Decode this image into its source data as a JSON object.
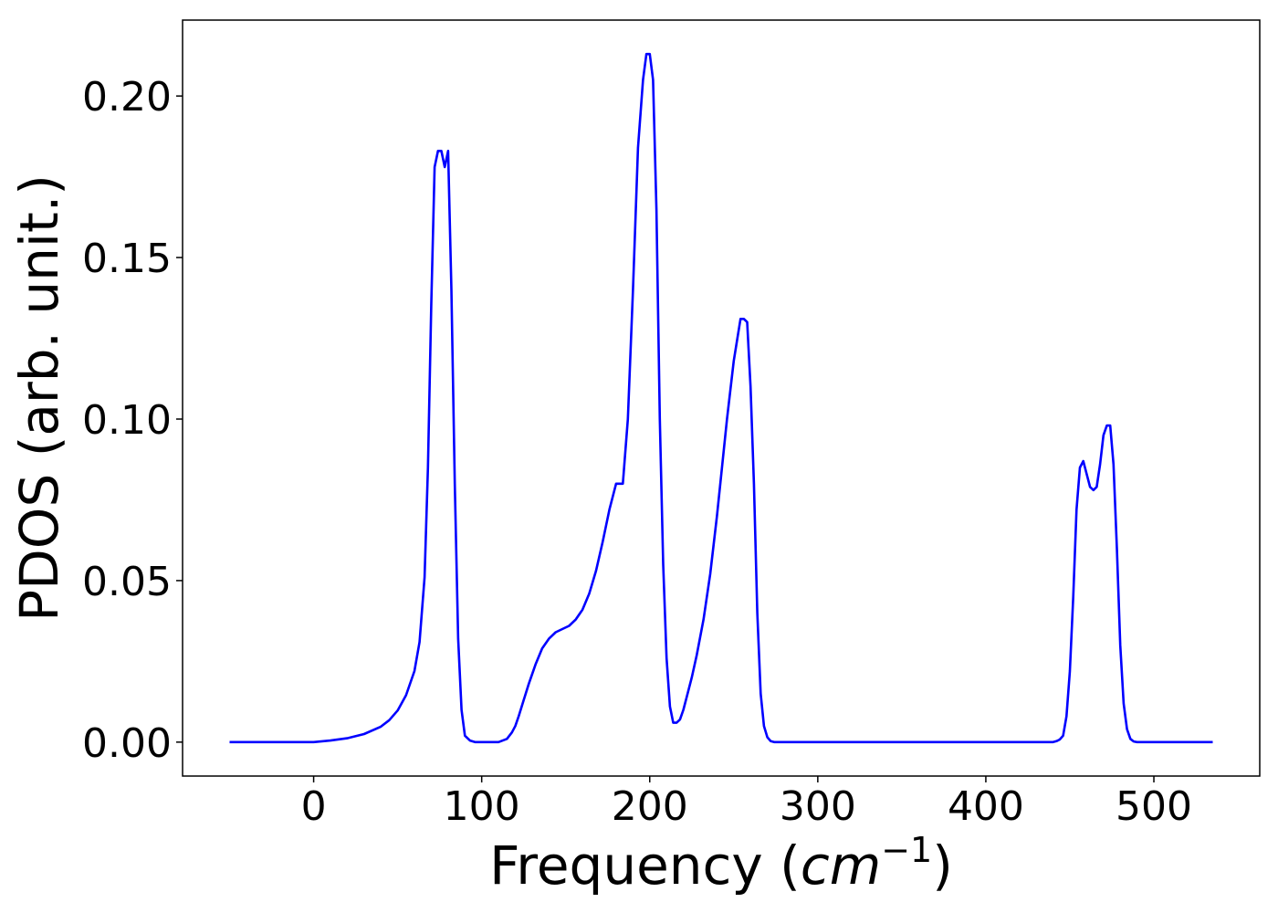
{
  "chart_data": {
    "type": "line",
    "title": "",
    "xlabel": "Frequency (",
    "xlabel_unit": "cm",
    "xlabel_exp": "−1",
    "xlabel_close": ")",
    "ylabel": "PDOS (arb. unit.)",
    "xlim": [
      -78,
      563
    ],
    "ylim": [
      -0.0105,
      0.2235
    ],
    "xticks": [
      0,
      100,
      200,
      300,
      400,
      500
    ],
    "xtick_labels": [
      "0",
      "100",
      "200",
      "300",
      "400",
      "500"
    ],
    "yticks": [
      0.0,
      0.05,
      0.1,
      0.15,
      0.2
    ],
    "ytick_labels": [
      "0.00",
      "0.05",
      "0.10",
      "0.15",
      "0.20"
    ],
    "grid": false,
    "series": [
      {
        "color": "#0000ff",
        "x": [
          -50,
          -40,
          -30,
          -20,
          -10,
          0,
          10,
          20,
          30,
          40,
          45,
          50,
          55,
          60,
          63,
          66,
          68,
          70,
          72,
          74,
          76,
          78,
          80,
          82,
          84,
          86,
          88,
          90,
          93,
          96,
          100,
          105,
          110,
          115,
          118,
          120,
          122,
          125,
          128,
          132,
          136,
          140,
          144,
          148,
          152,
          156,
          160,
          164,
          168,
          172,
          176,
          180,
          184,
          187,
          190,
          193,
          196,
          198,
          200,
          202,
          204,
          206,
          208,
          210,
          212,
          214,
          216,
          218,
          220,
          222,
          225,
          228,
          232,
          236,
          240,
          243,
          246,
          250,
          254,
          256,
          258,
          260,
          262,
          264,
          266,
          268,
          270,
          272,
          274,
          276,
          278,
          282,
          290,
          300,
          350,
          400,
          430,
          440,
          442,
          444,
          446,
          448,
          450,
          452,
          454,
          456,
          458,
          460,
          462,
          464,
          466,
          468,
          470,
          472,
          474,
          476,
          478,
          480,
          482,
          484,
          486,
          488,
          490,
          492,
          494,
          496,
          498,
          500,
          505,
          510,
          520,
          535
        ],
        "y": [
          0.0,
          0.0,
          0.0,
          0.0,
          0.0,
          0.0,
          0.0005,
          0.0012,
          0.0025,
          0.0048,
          0.0068,
          0.0098,
          0.0145,
          0.022,
          0.031,
          0.051,
          0.085,
          0.135,
          0.178,
          0.183,
          0.183,
          0.178,
          0.183,
          0.14,
          0.08,
          0.032,
          0.01,
          0.002,
          0.0005,
          0.0,
          0.0,
          0.0,
          0.0,
          0.001,
          0.003,
          0.005,
          0.008,
          0.013,
          0.018,
          0.024,
          0.029,
          0.032,
          0.034,
          0.035,
          0.036,
          0.038,
          0.041,
          0.046,
          0.053,
          0.062,
          0.072,
          0.08,
          0.08,
          0.1,
          0.14,
          0.184,
          0.205,
          0.213,
          0.213,
          0.205,
          0.165,
          0.1,
          0.055,
          0.026,
          0.011,
          0.006,
          0.006,
          0.007,
          0.01,
          0.014,
          0.02,
          0.027,
          0.038,
          0.052,
          0.07,
          0.085,
          0.1,
          0.118,
          0.131,
          0.131,
          0.13,
          0.11,
          0.08,
          0.04,
          0.015,
          0.005,
          0.0015,
          0.0003,
          0.0,
          0.0,
          0.0,
          0.0,
          0.0,
          0.0,
          0.0,
          0.0,
          0.0,
          0.0,
          0.0003,
          0.0008,
          0.002,
          0.008,
          0.022,
          0.045,
          0.072,
          0.085,
          0.087,
          0.083,
          0.079,
          0.078,
          0.079,
          0.086,
          0.095,
          0.098,
          0.098,
          0.086,
          0.06,
          0.03,
          0.012,
          0.004,
          0.001,
          0.0002,
          0.0,
          0.0,
          0.0,
          0.0,
          0.0,
          0.0,
          0.0,
          0.0,
          0.0,
          0.0
        ]
      }
    ]
  }
}
